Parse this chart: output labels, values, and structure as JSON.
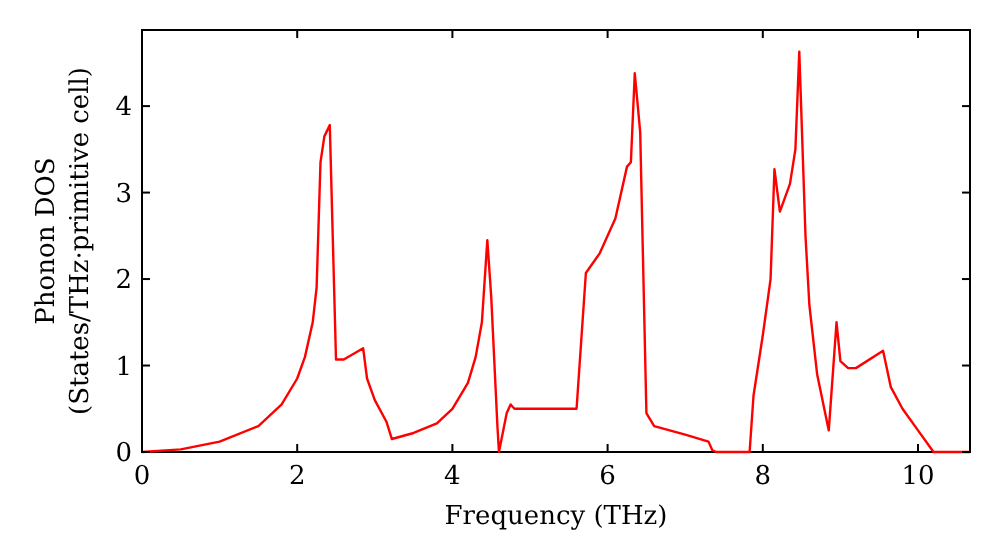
{
  "chart_data": {
    "type": "line",
    "xlabel": "Frequency (THz)",
    "ylabel": "Phonon DOS\n(States/THz·primitive cell)",
    "xlim": [
      0,
      10.67
    ],
    "ylim": [
      0,
      4.88
    ],
    "xticks": [
      0,
      2,
      4,
      6,
      8,
      10
    ],
    "yticks": [
      0,
      1,
      2,
      3,
      4
    ],
    "grid": false,
    "marker": "none",
    "line_style": "solid",
    "series": [
      {
        "color": "#ff0000",
        "x": [
          0,
          0.5,
          1,
          1.5,
          1.8,
          2.0,
          2.1,
          2.2,
          2.25,
          2.3,
          2.35,
          2.42,
          2.5,
          2.6,
          2.85,
          2.9,
          3.0,
          3.15,
          3.22,
          3.5,
          3.8,
          4.0,
          4.2,
          4.3,
          4.38,
          4.45,
          4.5,
          4.58,
          4.6,
          4.7,
          4.75,
          4.8,
          5.6,
          5.72,
          5.9,
          6.1,
          6.25,
          6.3,
          6.35,
          6.42,
          6.5,
          6.6,
          7.0,
          7.3,
          7.35,
          7.4,
          7.83,
          7.88,
          8.0,
          8.1,
          8.15,
          8.22,
          8.35,
          8.42,
          8.47,
          8.55,
          8.6,
          8.7,
          8.85,
          8.95,
          9.0,
          9.1,
          9.2,
          9.55,
          9.65,
          9.8,
          10.0,
          10.2,
          10.67
        ],
        "values": [
          0,
          0.03,
          0.12,
          0.3,
          0.55,
          0.85,
          1.1,
          1.5,
          1.9,
          3.35,
          3.65,
          3.78,
          1.07,
          1.07,
          1.2,
          0.85,
          0.6,
          0.35,
          0.15,
          0.22,
          0.33,
          0.5,
          0.8,
          1.1,
          1.5,
          2.45,
          1.8,
          0.3,
          0,
          0.45,
          0.55,
          0.5,
          0.5,
          2.07,
          2.3,
          2.7,
          3.3,
          3.35,
          4.38,
          3.7,
          0.45,
          0.3,
          0.2,
          0.12,
          0.02,
          0,
          0,
          0.65,
          1.35,
          2.0,
          3.27,
          2.78,
          3.1,
          3.5,
          4.63,
          2.5,
          1.7,
          0.9,
          0.25,
          1.5,
          1.05,
          0.97,
          0.97,
          1.17,
          0.75,
          0.5,
          0.25,
          0,
          0
        ]
      }
    ]
  }
}
